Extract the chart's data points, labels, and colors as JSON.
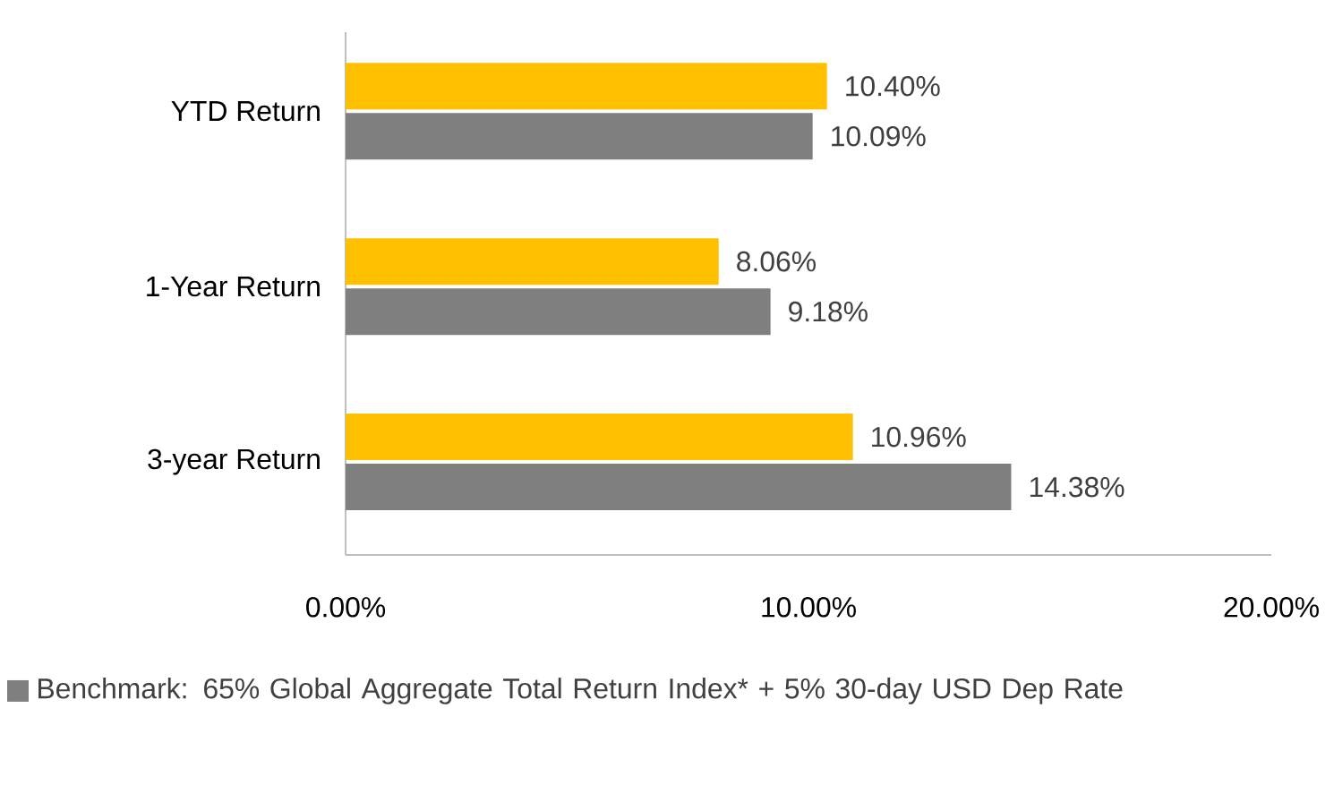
{
  "chart_data": {
    "type": "bar",
    "orientation": "horizontal",
    "categories": [
      "YTD Return",
      "1-Year Return",
      "3-year Return"
    ],
    "series": [
      {
        "name": "Benchmark: 65% Global Aggregate Total Return Index* + 5% 30-day USD Dep Rate",
        "color": "#7f7f7f",
        "values": [
          10.09,
          9.18,
          14.38
        ],
        "value_labels": [
          "10.09%",
          "9.18%",
          "14.38%"
        ]
      },
      {
        "color": "#ffc000",
        "values": [
          10.4,
          8.06,
          10.96
        ],
        "value_labels": [
          "10.40%",
          "8.06%",
          "10.96%"
        ]
      }
    ],
    "xlim": [
      0,
      20
    ],
    "xticks": [
      {
        "value": 0,
        "label": "0.00%"
      },
      {
        "value": 10,
        "label": "10.00%"
      },
      {
        "value": 20,
        "label": "20.00%"
      }
    ],
    "grid": false,
    "legend": "bottom"
  }
}
